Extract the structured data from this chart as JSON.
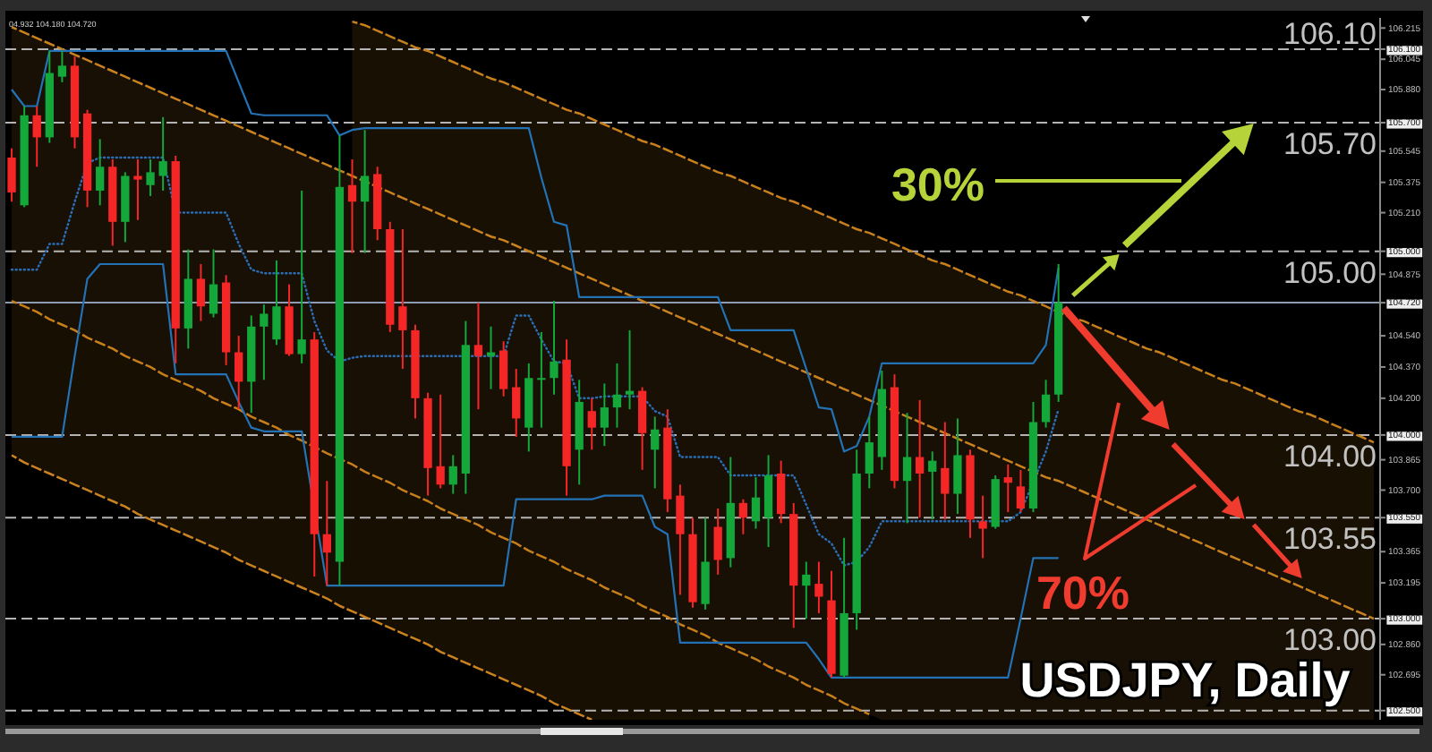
{
  "chart_data": {
    "type": "candlestick",
    "title": "USDJPY, Daily",
    "annotations": [
      "04.932 104.180 104.720",
      "30%",
      "70%"
    ],
    "categories": [
      null,
      null,
      null,
      null,
      null,
      null,
      null,
      null,
      null,
      null,
      null,
      null,
      null,
      null,
      null,
      null,
      null,
      null,
      null,
      null,
      null,
      null,
      null,
      null,
      null,
      null,
      null,
      null,
      null,
      null,
      null,
      null,
      null,
      null,
      null,
      null,
      null,
      null,
      null,
      null,
      null,
      null,
      null,
      null,
      null,
      null,
      null,
      null,
      null,
      null,
      null,
      null,
      null,
      null,
      null,
      null,
      null,
      null,
      null,
      null,
      null,
      null,
      null,
      null,
      null,
      null,
      null,
      null,
      null,
      null,
      null,
      null,
      null,
      null,
      null,
      null,
      null,
      null,
      null,
      null,
      null,
      null,
      null,
      null,
      null,
      null,
      null,
      null,
      null,
      null,
      null,
      null,
      null,
      null,
      null,
      null,
      null,
      null,
      null,
      null,
      null,
      null,
      null,
      null,
      null,
      null,
      null,
      null,
      null
    ],
    "ohlc": [
      [
        105.51,
        105.56,
        105.27,
        105.32
      ],
      [
        105.25,
        105.79,
        105.24,
        105.74
      ],
      [
        105.74,
        105.79,
        105.46,
        105.62
      ],
      [
        105.62,
        106.09,
        105.59,
        105.97
      ],
      [
        105.95,
        106.09,
        105.92,
        106.01
      ],
      [
        106.01,
        106.06,
        105.56,
        105.62
      ],
      [
        105.75,
        105.77,
        105.24,
        105.33
      ],
      [
        105.33,
        105.61,
        105.25,
        105.46
      ],
      [
        105.46,
        105.5,
        105.03,
        105.16
      ],
      [
        105.16,
        105.43,
        105.05,
        105.41
      ],
      [
        105.41,
        105.5,
        105.17,
        105.39
      ],
      [
        105.36,
        105.5,
        105.3,
        105.43
      ],
      [
        105.41,
        105.73,
        105.33,
        105.49
      ],
      [
        105.49,
        105.52,
        104.39,
        104.58
      ],
      [
        104.58,
        105.01,
        104.47,
        104.85
      ],
      [
        104.85,
        104.93,
        104.62,
        104.7
      ],
      [
        104.66,
        105.01,
        104.64,
        104.82
      ],
      [
        104.83,
        104.87,
        104.38,
        104.45
      ],
      [
        104.45,
        104.54,
        104.14,
        104.29
      ],
      [
        104.29,
        104.65,
        104.12,
        104.59
      ],
      [
        104.59,
        104.71,
        104.3,
        104.66
      ],
      [
        104.52,
        104.95,
        104.49,
        104.7
      ],
      [
        104.7,
        104.82,
        104.43,
        104.44
      ],
      [
        104.44,
        105.33,
        104.39,
        104.52
      ],
      [
        104.52,
        104.56,
        103.23,
        103.46
      ],
      [
        103.46,
        103.75,
        103.18,
        103.36
      ],
      [
        103.31,
        105.63,
        103.18,
        105.35
      ],
      [
        105.36,
        105.5,
        104.99,
        105.27
      ],
      [
        105.27,
        105.66,
        104.99,
        105.41
      ],
      [
        105.42,
        105.46,
        105.06,
        105.12
      ],
      [
        105.12,
        105.16,
        104.56,
        104.6
      ],
      [
        104.7,
        105.12,
        104.36,
        104.57
      ],
      [
        104.57,
        104.6,
        104.09,
        104.2
      ],
      [
        104.2,
        104.23,
        103.67,
        103.82
      ],
      [
        103.83,
        104.22,
        103.71,
        103.73
      ],
      [
        103.73,
        103.89,
        103.68,
        103.83
      ],
      [
        103.79,
        104.62,
        103.68,
        104.49
      ],
      [
        104.49,
        104.72,
        104.14,
        104.43
      ],
      [
        104.43,
        104.59,
        104.25,
        104.45
      ],
      [
        104.46,
        104.51,
        104.21,
        104.25
      ],
      [
        104.26,
        104.36,
        103.99,
        104.09
      ],
      [
        104.04,
        104.39,
        103.91,
        104.31
      ],
      [
        104.3,
        104.56,
        104.04,
        104.31
      ],
      [
        104.31,
        104.73,
        104.22,
        104.4
      ],
      [
        104.41,
        104.52,
        103.67,
        103.83
      ],
      [
        103.92,
        104.3,
        103.73,
        104.18
      ],
      [
        104.13,
        104.2,
        103.92,
        104.04
      ],
      [
        104.04,
        104.28,
        103.94,
        104.15
      ],
      [
        104.15,
        104.39,
        104.04,
        104.22
      ],
      [
        104.22,
        104.57,
        104.14,
        104.24
      ],
      [
        104.24,
        104.26,
        103.81,
        104.01
      ],
      [
        103.92,
        104.1,
        103.71,
        104.03
      ],
      [
        104.04,
        104.14,
        103.58,
        103.65
      ],
      [
        103.67,
        103.73,
        103.13,
        103.46
      ],
      [
        103.46,
        103.55,
        103.06,
        103.09
      ],
      [
        103.08,
        103.55,
        103.05,
        103.31
      ],
      [
        103.5,
        103.6,
        103.24,
        103.32
      ],
      [
        103.33,
        103.88,
        103.28,
        103.63
      ],
      [
        103.63,
        103.65,
        103.46,
        103.55
      ],
      [
        103.53,
        103.77,
        103.49,
        103.66
      ],
      [
        103.55,
        103.89,
        103.39,
        103.78
      ],
      [
        103.79,
        103.86,
        103.52,
        103.57
      ],
      [
        103.57,
        103.63,
        102.95,
        103.18
      ],
      [
        103.18,
        103.31,
        103.0,
        103.24
      ],
      [
        103.19,
        103.31,
        103.03,
        103.12
      ],
      [
        103.1,
        103.26,
        102.68,
        102.7
      ],
      [
        102.69,
        103.44,
        102.68,
        103.03
      ],
      [
        103.03,
        103.92,
        102.94,
        103.79
      ],
      [
        103.79,
        104.1,
        103.71,
        103.96
      ],
      [
        103.88,
        104.35,
        103.81,
        104.25
      ],
      [
        104.26,
        104.33,
        103.71,
        103.75
      ],
      [
        103.75,
        104.12,
        103.52,
        103.88
      ],
      [
        103.88,
        104.19,
        103.55,
        103.79
      ],
      [
        103.8,
        103.91,
        103.54,
        103.86
      ],
      [
        103.82,
        104.07,
        103.54,
        103.68
      ],
      [
        103.68,
        104.09,
        103.57,
        103.89
      ],
      [
        103.89,
        103.92,
        103.44,
        103.54
      ],
      [
        103.53,
        103.67,
        103.33,
        103.49
      ],
      [
        103.5,
        103.78,
        103.49,
        103.76
      ],
      [
        103.77,
        103.84,
        103.58,
        103.74
      ],
      [
        103.72,
        103.81,
        103.58,
        103.6
      ],
      [
        103.6,
        104.18,
        103.58,
        104.07
      ],
      [
        104.07,
        104.3,
        104.04,
        104.22
      ],
      [
        104.22,
        104.93,
        104.18,
        104.72
      ],
      null,
      null,
      null,
      null,
      null,
      null,
      null,
      null,
      null,
      null,
      null,
      null,
      null,
      null,
      null,
      null,
      null,
      null,
      null,
      null,
      null,
      null,
      null,
      null,
      null
    ],
    "colors": [
      "#f52626",
      "#14a83a",
      "#f52626",
      "#14a83a",
      "#14a83a",
      "#f52626",
      "#f52626",
      "#14a83a",
      "#f52626",
      "#14a83a",
      "#f52626",
      "#14a83a",
      "#14a83a",
      "#f52626",
      "#14a83a",
      "#f52626",
      "#14a83a",
      "#f52626",
      "#f52626",
      "#14a83a",
      "#14a83a",
      "#14a83a",
      "#f52626",
      "#14a83a",
      "#f52626",
      "#f52626",
      "#14a83a",
      "#f52626",
      "#14a83a",
      "#f52626",
      "#f52626",
      "#f52626",
      "#f52626",
      "#f52626",
      "#f52626",
      "#14a83a",
      "#14a83a",
      "#f52626",
      "#14a83a",
      "#f52626",
      "#f52626",
      "#14a83a",
      "#14a83a",
      "#14a83a",
      "#f52626",
      "#14a83a",
      "#f52626",
      "#14a83a",
      "#14a83a",
      "#14a83a",
      "#f52626",
      "#14a83a",
      "#f52626",
      "#f52626",
      "#f52626",
      "#14a83a",
      "#f52626",
      "#14a83a",
      "#f52626",
      "#14a83a",
      "#14a83a",
      "#f52626",
      "#f52626",
      "#14a83a",
      "#f52626",
      "#f52626",
      "#14a83a",
      "#14a83a",
      "#14a83a",
      "#14a83a",
      "#f52626",
      "#14a83a",
      "#f52626",
      "#14a83a",
      "#f52626",
      "#14a83a",
      "#f52626",
      "#f52626",
      "#14a83a",
      "#f52626",
      "#f52626",
      "#14a83a",
      "#14a83a",
      "#14a83a",
      null,
      null,
      null,
      null,
      null,
      null,
      null,
      null,
      null,
      null,
      null,
      null,
      null,
      null,
      null,
      null,
      null,
      null,
      null,
      null,
      null,
      null,
      null,
      null,
      null
    ],
    "ylim": [
      102.45,
      106.27
    ],
    "yticks": [
      {
        "value": 106.215,
        "label": "106.215"
      },
      {
        "value": 106.1,
        "label": "106.100"
      },
      {
        "value": 106.045,
        "label": "106.045"
      },
      {
        "value": 105.88,
        "label": "105.880"
      },
      {
        "value": 105.7,
        "label": "105.700"
      },
      {
        "value": 105.545,
        "label": "105.545"
      },
      {
        "value": 105.375,
        "label": "105.375"
      },
      {
        "value": 105.21,
        "label": "105.210"
      },
      {
        "value": 105.0,
        "label": "105.000"
      },
      {
        "value": 104.875,
        "label": "104.875"
      },
      {
        "value": 104.72,
        "label": "104.720"
      },
      {
        "value": 104.54,
        "label": "104.540"
      },
      {
        "value": 104.37,
        "label": "104.370"
      },
      {
        "value": 104.2,
        "label": "104.200"
      },
      {
        "value": 104.0,
        "label": "104.000"
      },
      {
        "value": 103.865,
        "label": "103.865"
      },
      {
        "value": 103.7,
        "label": "103.700"
      },
      {
        "value": 103.55,
        "label": "103.550"
      },
      {
        "value": 103.365,
        "label": "103.365"
      },
      {
        "value": 103.195,
        "label": "103.195"
      },
      {
        "value": 103.0,
        "label": "103.000"
      },
      {
        "value": 102.86,
        "label": "102.860"
      },
      {
        "value": 102.695,
        "label": "102.695"
      },
      {
        "value": 102.5,
        "label": "102.500"
      }
    ],
    "tick_labels": "y",
    "ref_lines": [
      {
        "axis": "y",
        "value": 106.1,
        "label": "106.10",
        "line_style": "dashed",
        "color": "#b4b4b4"
      },
      {
        "axis": "y",
        "value": 105.7,
        "label": "105.70",
        "line_style": "dashed",
        "color": "#b4b4b4"
      },
      {
        "axis": "y",
        "value": 105.0,
        "label": "105.00",
        "line_style": "dashed",
        "color": "#b4b4b4"
      },
      {
        "axis": "y",
        "value": 104.72,
        "line_style": "solid",
        "color": "#8d9cb3"
      },
      {
        "axis": "y",
        "value": 104.0,
        "label": "104.00",
        "line_style": "dashed",
        "color": "#b4b4b4"
      },
      {
        "axis": "y",
        "value": 103.55,
        "label": "103.55",
        "line_style": "dashed",
        "color": "#b4b4b4"
      },
      {
        "axis": "y",
        "value": 103.0,
        "label": "103.00",
        "line_style": "dashed",
        "color": "#b4b4b4"
      },
      {
        "axis": "y",
        "value": 102.5,
        "line_style": "dashed",
        "color": "#b4b4b4"
      }
    ],
    "series": [
      {
        "type": "line",
        "color": "#c8801c",
        "line_style": "dashed",
        "values": [
          null,
          null,
          null,
          null,
          null,
          null,
          null,
          null,
          null,
          null,
          null,
          null,
          null,
          null,
          null,
          null,
          null,
          null,
          null,
          null,
          null,
          null,
          null,
          null,
          null,
          null,
          null,
          106.25,
          106.23,
          106.2,
          106.17,
          106.14,
          106.11,
          106.09,
          106.06,
          106.03,
          106.0,
          105.97,
          105.94,
          105.92,
          105.89,
          105.86,
          105.83,
          105.8,
          105.77,
          105.75,
          105.72,
          105.69,
          105.66,
          105.63,
          105.6,
          105.58,
          105.55,
          105.52,
          105.49,
          105.46,
          105.43,
          105.41,
          105.38,
          105.35,
          105.32,
          105.29,
          105.27,
          105.24,
          105.21,
          105.18,
          105.15,
          105.12,
          105.1,
          105.07,
          105.04,
          105.01,
          104.98,
          104.95,
          104.93,
          104.9,
          104.87,
          104.84,
          104.81,
          104.78,
          104.76,
          104.73,
          104.7,
          null,
          104.64,
          104.62,
          104.59,
          104.56,
          104.53,
          104.5,
          104.47,
          104.45,
          104.42,
          104.39,
          104.36,
          104.33,
          104.3,
          104.28,
          104.25,
          104.22,
          104.19,
          104.16,
          104.13,
          104.11,
          104.08,
          104.05,
          104.02,
          103.99,
          103.96
        ],
        "upper": [
          null,
          null,
          null,
          null,
          null,
          null,
          null,
          null,
          null,
          null,
          null,
          null,
          null,
          null,
          null,
          null,
          null,
          null,
          null,
          null,
          null,
          null,
          null,
          null,
          null,
          null,
          null,
          106.25,
          106.23,
          106.2,
          106.17,
          106.14,
          106.11,
          106.09,
          106.06,
          106.03,
          106.0,
          105.97,
          105.94,
          105.92,
          105.89,
          105.86,
          105.83,
          105.8,
          105.77,
          105.75,
          105.72,
          105.69,
          105.66,
          105.63,
          105.6,
          105.58,
          105.55,
          105.52,
          105.49,
          105.46,
          105.43,
          105.41,
          105.38,
          105.35,
          105.32,
          105.29,
          105.27,
          105.24,
          105.21,
          105.18,
          105.15,
          105.12,
          105.1,
          105.07,
          105.04,
          105.01,
          104.98,
          104.95,
          104.93,
          104.9,
          104.87,
          104.84,
          104.81,
          104.78,
          104.76,
          104.73,
          104.7,
          104.67,
          104.64,
          104.62,
          104.59,
          104.56,
          104.53,
          104.5,
          104.47,
          104.45,
          104.42,
          104.39,
          104.36,
          104.33,
          104.3,
          104.28,
          104.25,
          104.22,
          104.19,
          104.16,
          104.13,
          104.11,
          104.08,
          104.05,
          104.02,
          103.99,
          103.96
        ],
        "lower": [
          null,
          null,
          null,
          null,
          null,
          null,
          null,
          null,
          null,
          null,
          null,
          null,
          null,
          null,
          null,
          null,
          null,
          null,
          null,
          null,
          null,
          null,
          null,
          null,
          null,
          null,
          null,
          105.41,
          105.38,
          105.35,
          105.32,
          105.29,
          105.26,
          105.23,
          105.2,
          105.17,
          105.14,
          105.11,
          105.08,
          105.06,
          105.03,
          105.0,
          104.97,
          104.94,
          104.91,
          104.88,
          104.85,
          104.82,
          104.79,
          104.76,
          104.73,
          104.7,
          104.67,
          104.64,
          104.61,
          104.58,
          104.55,
          104.52,
          104.49,
          104.46,
          104.43,
          104.4,
          104.37,
          104.34,
          104.31,
          104.28,
          104.25,
          104.22,
          104.19,
          104.16,
          104.13,
          104.1,
          104.07,
          104.04,
          104.01,
          103.98,
          103.95,
          103.92,
          103.89,
          103.86,
          103.83,
          103.8,
          103.77,
          103.75,
          103.72,
          103.69,
          103.66,
          103.63,
          103.6,
          103.57,
          103.54,
          103.51,
          103.48,
          103.45,
          103.42,
          103.39,
          103.36,
          103.33,
          103.3,
          103.27,
          103.24,
          103.21,
          103.18,
          103.15,
          103.12,
          103.09,
          103.06,
          103.03,
          103.0
        ]
      },
      {
        "type": "line",
        "color": "#c9821e",
        "line_style": "dashed",
        "values": [
          106.22,
          106.19,
          106.16,
          106.13,
          106.1,
          106.07,
          106.04,
          106.01,
          105.98,
          105.95,
          105.92,
          105.89,
          105.86,
          105.83,
          105.8,
          105.77,
          105.74,
          105.71,
          105.68,
          105.65,
          105.62,
          105.59,
          105.56,
          105.53,
          105.5,
          105.47,
          105.44,
          105.41,
          null,
          null,
          105.32,
          105.29,
          105.26,
          105.23,
          105.2,
          105.17,
          105.14,
          105.11,
          105.08,
          105.06,
          105.03,
          105.0,
          104.97,
          104.94,
          104.91,
          104.88,
          104.85,
          104.82,
          104.79,
          104.76,
          104.73,
          104.7,
          104.67,
          104.64,
          104.61,
          104.58,
          104.55,
          104.52,
          104.49,
          104.46,
          104.43,
          104.4,
          104.37,
          104.34,
          104.31,
          104.28,
          104.25,
          104.22,
          104.19,
          null,
          null,
          104.1,
          104.07,
          104.04,
          104.01,
          103.98,
          103.95,
          103.92,
          103.89,
          103.86,
          103.83,
          null,
          103.77,
          103.75,
          103.72,
          103.69,
          103.66,
          103.63,
          103.6,
          103.57,
          103.54,
          103.51,
          103.48,
          103.45,
          103.42,
          103.39,
          103.36,
          103.33,
          103.3,
          103.27,
          103.24,
          103.21,
          103.18,
          103.15,
          103.12,
          103.09,
          103.06,
          103.03,
          103.0
        ],
        "upper": [
          106.22,
          106.19,
          106.16,
          106.13,
          106.1,
          106.07,
          106.04,
          106.01,
          105.98,
          105.95,
          105.92,
          105.89,
          105.86,
          105.83,
          105.8,
          105.77,
          105.74,
          105.71,
          105.68,
          105.65,
          105.62,
          105.59,
          105.56,
          105.53,
          105.5,
          105.47,
          105.44,
          105.41,
          105.38,
          105.35,
          105.32,
          105.29,
          105.26,
          105.23,
          105.2,
          105.17,
          105.14,
          105.11,
          105.08,
          105.06,
          105.03,
          105.0,
          104.97,
          104.94,
          104.91,
          104.88,
          104.85,
          104.82,
          104.79,
          104.76,
          104.73,
          104.7,
          104.67,
          104.64,
          104.61,
          104.58,
          104.55,
          104.52,
          104.49,
          104.46,
          104.43,
          104.4,
          104.37,
          104.34,
          104.31,
          104.28,
          104.25,
          104.22,
          104.19,
          104.16,
          104.13,
          104.1,
          104.07,
          104.04,
          104.01,
          103.98,
          103.95,
          103.92,
          103.89,
          103.86,
          103.83,
          103.8,
          103.77,
          103.75,
          103.72,
          103.69,
          103.66,
          103.63,
          103.6,
          103.57,
          103.54,
          103.51,
          103.48,
          103.45,
          103.42,
          103.39,
          103.36,
          103.33,
          103.3,
          103.27,
          103.24,
          103.21,
          103.18,
          103.15,
          103.12,
          103.09,
          103.06,
          103.03,
          103.0
        ],
        "lower": [
          104.73,
          104.7,
          104.67,
          104.63,
          104.6,
          104.57,
          104.53,
          104.5,
          104.47,
          104.43,
          104.4,
          104.37,
          104.33,
          104.3,
          104.27,
          104.24,
          104.2,
          104.17,
          104.14,
          104.1,
          104.07,
          104.04,
          104.0,
          103.97,
          103.94,
          103.9,
          103.87,
          103.84,
          103.8,
          103.77,
          103.74,
          103.7,
          103.67,
          103.64,
          103.6,
          103.57,
          103.54,
          103.51,
          103.47,
          103.44,
          103.41,
          103.37,
          103.34,
          103.31,
          103.27,
          103.24,
          103.21,
          103.17,
          103.14,
          103.11,
          103.07,
          103.04,
          103.01,
          102.97,
          102.94,
          102.91,
          102.87,
          102.84,
          102.81,
          102.78,
          102.74,
          102.71,
          102.68,
          102.64,
          102.61,
          102.58,
          102.54,
          102.51,
          102.48,
          102.45,
          102.45,
          102.45,
          102.45,
          102.45,
          102.45,
          102.45,
          102.45,
          102.45,
          102.45,
          102.45,
          102.45,
          102.45,
          102.45,
          102.45,
          102.45,
          102.45,
          102.45,
          102.45,
          102.45,
          102.45,
          102.45,
          102.45,
          102.45,
          102.45,
          102.45,
          102.45,
          102.45,
          102.45,
          102.45,
          102.45,
          102.45,
          102.45,
          102.45,
          102.45,
          102.45,
          102.45,
          102.45,
          102.45,
          102.45
        ]
      },
      {
        "type": "line",
        "color": "#c77f1a",
        "line_style": "dashed",
        "values": [
          104.73,
          104.7,
          104.67,
          104.63,
          104.6,
          104.57,
          104.53,
          104.5,
          104.47,
          104.43,
          104.4,
          104.37,
          104.33,
          104.3,
          104.27,
          104.24,
          104.2,
          104.17,
          104.14,
          104.1,
          104.07,
          104.04,
          104.0,
          103.97,
          null,
          103.9,
          null,
          103.84,
          103.8,
          103.77,
          103.74,
          103.7,
          103.67,
          103.64,
          103.6,
          103.57,
          103.54,
          103.51,
          103.47,
          103.44,
          103.41,
          103.37,
          103.34,
          103.31,
          103.27,
          103.24,
          103.21,
          103.17,
          103.14,
          103.11,
          103.07,
          103.04,
          103.01,
          102.97,
          102.94,
          102.91,
          102.87,
          102.84,
          102.81,
          102.78,
          102.74,
          102.71,
          102.68,
          102.64,
          102.61,
          102.58,
          102.54,
          102.51,
          102.48,
          null,
          null,
          null,
          null,
          null,
          null,
          null,
          null,
          null,
          null,
          null,
          null,
          null,
          null,
          null,
          null,
          null,
          null,
          null,
          null,
          null,
          null,
          null,
          null,
          null,
          null,
          null,
          null,
          null,
          null,
          null,
          null,
          null,
          null,
          null,
          null,
          null,
          null,
          null,
          null
        ],
        "upper": [
          104.73,
          104.7,
          104.67,
          104.63,
          104.6,
          104.57,
          104.53,
          104.5,
          104.47,
          104.43,
          104.4,
          104.37,
          104.33,
          104.3,
          104.27,
          104.24,
          104.2,
          104.17,
          104.14,
          104.1,
          104.07,
          104.04,
          104.0,
          103.97,
          103.94,
          103.9,
          103.87,
          103.84,
          103.8,
          103.77,
          103.74,
          103.7,
          103.67,
          103.64,
          103.6,
          103.57,
          103.54,
          103.51,
          103.47,
          103.44,
          103.41,
          103.37,
          103.34,
          103.31,
          103.27,
          103.24,
          103.21,
          103.17,
          103.14,
          103.11,
          103.07,
          103.04,
          103.01,
          102.97,
          102.94,
          102.91,
          102.87,
          102.84,
          102.81,
          102.78,
          102.74,
          102.71,
          102.68,
          102.64,
          102.61,
          102.58,
          102.54,
          102.51,
          102.48,
          null,
          null,
          null,
          null,
          null,
          null,
          null,
          null,
          null,
          null,
          null,
          null,
          null,
          null,
          null,
          null,
          null,
          null,
          null,
          null,
          null,
          null,
          null,
          null,
          null,
          null,
          null,
          null,
          null,
          null,
          null,
          null,
          null,
          null,
          null,
          null,
          null,
          null,
          null,
          null
        ],
        "lower": [
          103.89,
          103.85,
          103.82,
          103.79,
          103.76,
          103.73,
          103.7,
          103.67,
          103.64,
          103.61,
          103.57,
          103.54,
          103.51,
          103.48,
          103.45,
          103.42,
          103.39,
          103.36,
          103.32,
          103.29,
          103.26,
          103.23,
          103.2,
          103.17,
          103.14,
          103.11,
          103.07,
          103.04,
          103.01,
          102.98,
          102.95,
          102.92,
          102.89,
          102.86,
          102.82,
          102.79,
          102.76,
          102.73,
          102.7,
          102.67,
          102.64,
          102.61,
          102.58,
          102.54,
          102.51,
          102.48,
          102.45,
          102.45,
          102.45,
          102.45,
          102.45,
          102.45,
          102.45,
          102.45,
          102.45,
          102.45,
          102.45,
          102.45,
          102.45,
          102.45,
          102.45,
          102.45,
          102.45,
          102.45,
          102.45,
          102.45,
          102.45,
          102.45,
          102.45,
          null,
          null,
          null,
          null,
          null,
          null,
          null,
          null,
          null,
          null,
          null,
          null,
          null,
          null,
          null,
          null,
          null,
          null,
          null,
          null,
          null,
          null,
          null,
          null,
          null,
          null,
          null,
          null,
          null,
          null,
          null,
          null,
          null,
          null,
          null,
          null,
          null,
          null,
          null,
          null
        ]
      },
      {
        "type": "line",
        "color": "#ca831f",
        "line_style": "dashed",
        "values": [
          103.89,
          103.85,
          103.82,
          103.79,
          103.76,
          103.73,
          103.7,
          103.67,
          103.64,
          103.61,
          103.57,
          103.54,
          103.51,
          103.48,
          103.45,
          103.42,
          103.39,
          103.36,
          103.32,
          103.29,
          103.26,
          103.23,
          103.2,
          103.17,
          103.14,
          103.11,
          103.07,
          103.04,
          103.01,
          102.98,
          102.95,
          102.92,
          102.89,
          102.86,
          102.82,
          102.79,
          102.76,
          102.73,
          102.7,
          102.67,
          102.64,
          102.61,
          102.58,
          102.54,
          102.51,
          102.48,
          102.45,
          null,
          null,
          null,
          null,
          null,
          null,
          null,
          null,
          null,
          null,
          null,
          null,
          null,
          null,
          null,
          null,
          null,
          null,
          null,
          null,
          null,
          null,
          null,
          null,
          null,
          null,
          null,
          null,
          null,
          null,
          null,
          null,
          null,
          null,
          null,
          null,
          null,
          null,
          null,
          null,
          null,
          null,
          null,
          null,
          null,
          null,
          null,
          null,
          null,
          null,
          null,
          null,
          null,
          null,
          null,
          null,
          null,
          null,
          null,
          null,
          null,
          null
        ]
      },
      {
        "type": "line",
        "color": "#2272b5",
        "values": [
          105.88,
          105.79,
          105.79,
          106.09,
          106.09,
          106.09,
          106.09,
          106.09,
          106.09,
          106.09,
          106.09,
          106.09,
          106.09,
          106.09,
          106.09,
          106.09,
          106.09,
          106.09,
          105.92,
          105.75,
          105.74,
          105.74,
          105.74,
          105.74,
          105.74,
          105.74,
          105.63,
          105.66,
          105.67,
          105.67,
          105.67,
          105.67,
          105.67,
          105.67,
          105.67,
          105.67,
          105.67,
          105.67,
          105.67,
          105.67,
          105.67,
          105.67,
          105.4,
          105.16,
          105.14,
          104.75,
          104.75,
          104.75,
          104.75,
          104.75,
          104.75,
          104.75,
          104.75,
          104.75,
          104.75,
          104.75,
          104.75,
          104.57,
          104.57,
          104.57,
          104.57,
          104.57,
          104.57,
          104.36,
          104.15,
          104.14,
          103.91,
          103.94,
          104.1,
          104.39,
          104.39,
          104.39,
          104.39,
          104.39,
          104.39,
          104.39,
          104.39,
          104.39,
          104.39,
          104.39,
          104.39,
          104.39,
          104.49,
          104.91,
          null,
          null,
          null,
          null,
          null,
          null,
          null,
          null,
          null,
          null,
          null,
          null,
          null,
          null,
          null,
          null,
          null,
          null,
          null,
          null,
          null,
          null,
          null,
          null,
          null
        ]
      },
      {
        "type": "line",
        "color": "#2272b5",
        "values": [
          103.99,
          103.99,
          103.99,
          103.99,
          103.99,
          104.43,
          104.85,
          104.93,
          104.93,
          104.93,
          104.93,
          104.93,
          104.93,
          104.33,
          104.33,
          104.33,
          104.33,
          104.33,
          104.18,
          104.04,
          104.02,
          104.02,
          104.02,
          104.02,
          null,
          103.18,
          103.18,
          103.18,
          103.18,
          103.18,
          103.18,
          103.18,
          103.18,
          103.18,
          103.18,
          103.18,
          103.18,
          103.18,
          103.18,
          103.18,
          103.65,
          103.65,
          103.65,
          103.65,
          103.65,
          103.65,
          103.65,
          103.67,
          103.67,
          103.67,
          103.67,
          103.5,
          103.46,
          102.87,
          102.87,
          102.87,
          102.87,
          102.87,
          102.87,
          102.87,
          102.87,
          102.87,
          102.87,
          102.87,
          102.78,
          102.68,
          102.68,
          102.68,
          102.68,
          102.68,
          102.68,
          102.68,
          102.68,
          102.68,
          102.68,
          102.68,
          102.68,
          102.68,
          102.68,
          102.68,
          103.0,
          103.33,
          103.33,
          103.33,
          null,
          null,
          null,
          null,
          null,
          null,
          null,
          null,
          null,
          null,
          null,
          null,
          null,
          null,
          null,
          null,
          null,
          null,
          null,
          null,
          null,
          null,
          null,
          null,
          null
        ]
      },
      {
        "type": "line",
        "color": "#2a6db5",
        "line_style": "dotted",
        "values": [
          104.9,
          104.9,
          104.9,
          105.04,
          105.04,
          105.27,
          105.48,
          105.51,
          105.51,
          105.51,
          105.51,
          105.51,
          105.51,
          105.21,
          105.21,
          105.21,
          105.21,
          105.21,
          105.04,
          104.9,
          104.88,
          104.88,
          104.88,
          104.88,
          104.62,
          104.46,
          104.4,
          104.42,
          104.43,
          104.43,
          104.43,
          104.43,
          104.43,
          104.43,
          104.43,
          104.43,
          104.43,
          104.43,
          104.43,
          104.43,
          104.65,
          104.65,
          104.52,
          104.4,
          104.39,
          104.2,
          104.2,
          104.21,
          104.21,
          104.21,
          104.21,
          104.13,
          104.1,
          103.88,
          103.88,
          103.88,
          103.88,
          103.78,
          103.78,
          103.78,
          103.78,
          103.78,
          103.78,
          103.62,
          103.46,
          103.41,
          103.29,
          103.31,
          103.39,
          103.53,
          103.53,
          103.53,
          103.53,
          103.53,
          103.53,
          103.53,
          103.53,
          103.53,
          103.53,
          103.53,
          103.58,
          null,
          103.91,
          104.14,
          null,
          null,
          null,
          null,
          null,
          null,
          null,
          null,
          null,
          null,
          null,
          null,
          null,
          null,
          null,
          null,
          null,
          null,
          null,
          null,
          null,
          null,
          null,
          null,
          null
        ]
      }
    ]
  }
}
